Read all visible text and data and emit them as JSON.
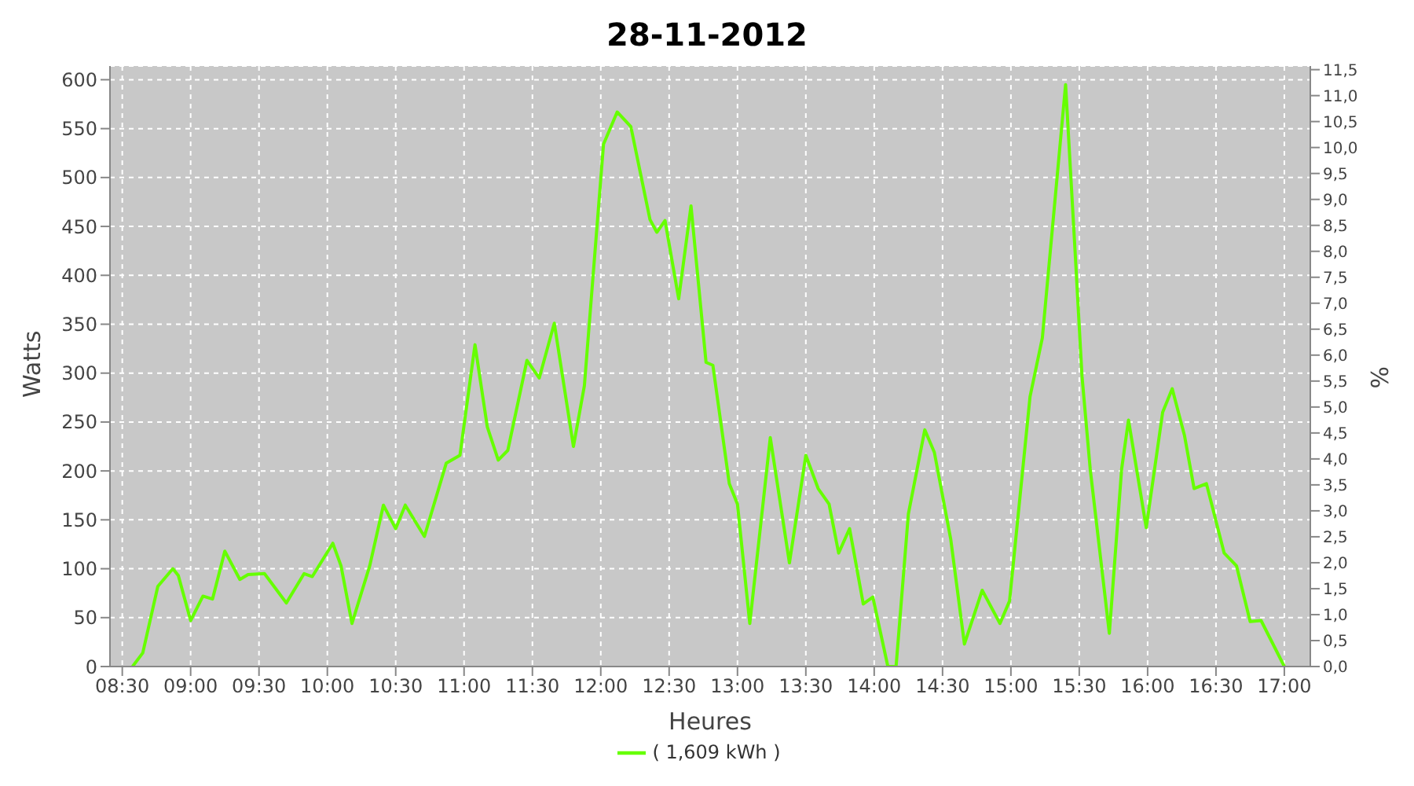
{
  "chart_data": {
    "type": "line",
    "title": "28-11-2012",
    "xlabel": "Heures",
    "ylabel": "Watts",
    "y2label": "%",
    "x": [
      8.575,
      8.65,
      8.76,
      8.87,
      8.91,
      9.0,
      9.09,
      9.16,
      9.25,
      9.36,
      9.42,
      9.54,
      9.7,
      9.83,
      9.89,
      10.04,
      10.1,
      10.18,
      10.31,
      10.41,
      10.5,
      10.57,
      10.71,
      10.87,
      10.97,
      11.08,
      11.17,
      11.25,
      11.32,
      11.46,
      11.55,
      11.66,
      11.8,
      11.88,
      12.02,
      12.12,
      12.22,
      12.36,
      12.41,
      12.47,
      12.57,
      12.66,
      12.77,
      12.82,
      12.94,
      13.0,
      13.09,
      13.24,
      13.38,
      13.5,
      13.59,
      13.67,
      13.74,
      13.82,
      13.92,
      13.99,
      14.1,
      14.16,
      14.25,
      14.37,
      14.44,
      14.56,
      14.66,
      14.79,
      14.92,
      14.99,
      15.14,
      15.23,
      15.4,
      15.47,
      15.52,
      15.58,
      15.72,
      15.81,
      15.86,
      15.99,
      16.11,
      16.18,
      16.27,
      16.34,
      16.43,
      16.56,
      16.65,
      16.75,
      16.83,
      17.0
    ],
    "series": [
      {
        "name": "( 1,609 kWh )",
        "color": "#66ff00",
        "values": [
          0,
          14,
          82,
          100,
          93,
          47,
          72,
          69,
          118,
          89,
          94,
          95,
          65,
          95,
          92,
          126,
          103,
          44,
          103,
          165,
          141,
          165,
          133,
          208,
          216,
          329,
          245,
          211,
          221,
          313,
          295,
          351,
          225,
          287,
          534,
          567,
          552,
          457,
          444,
          456,
          376,
          471,
          311,
          308,
          187,
          166,
          44,
          234,
          106,
          216,
          182,
          166,
          116,
          141,
          64,
          71,
          0,
          0,
          156,
          242,
          219,
          130,
          23,
          78,
          44,
          67,
          276,
          336,
          595,
          423,
          297,
          202,
          34,
          202,
          252,
          142,
          260,
          284,
          236,
          182,
          187,
          116,
          103,
          46,
          47,
          0
        ]
      }
    ],
    "xlim": [
      8.41,
      17.19
    ],
    "xticks": [
      {
        "value": 8.5,
        "label": "08:30"
      },
      {
        "value": 9,
        "label": "09:00"
      },
      {
        "value": 9.5,
        "label": "09:30"
      },
      {
        "value": 10,
        "label": "10:00"
      },
      {
        "value": 10.5,
        "label": "10:30"
      },
      {
        "value": 11,
        "label": "11:00"
      },
      {
        "value": 11.5,
        "label": "11:30"
      },
      {
        "value": 12,
        "label": "12:00"
      },
      {
        "value": 12.5,
        "label": "12:30"
      },
      {
        "value": 13,
        "label": "13:00"
      },
      {
        "value": 13.5,
        "label": "13:30"
      },
      {
        "value": 14,
        "label": "14:00"
      },
      {
        "value": 14.5,
        "label": "14:30"
      },
      {
        "value": 15,
        "label": "15:00"
      },
      {
        "value": 15.5,
        "label": "15:30"
      },
      {
        "value": 16,
        "label": "16:00"
      },
      {
        "value": 16.5,
        "label": "16:30"
      },
      {
        "value": 17,
        "label": "17:00"
      }
    ],
    "ylim": [
      0,
      614
    ],
    "yticks": [
      0,
      50,
      100,
      150,
      200,
      250,
      300,
      350,
      400,
      450,
      500,
      550,
      600
    ],
    "y2lim": [
      0,
      11.57
    ],
    "y2ticks": [
      {
        "value": 0,
        "label": "0,0"
      },
      {
        "value": 0.5,
        "label": "0,5"
      },
      {
        "value": 1,
        "label": "1,0"
      },
      {
        "value": 1.5,
        "label": "1,5"
      },
      {
        "value": 2,
        "label": "2,0"
      },
      {
        "value": 2.5,
        "label": "2,5"
      },
      {
        "value": 3,
        "label": "3,0"
      },
      {
        "value": 3.5,
        "label": "3,5"
      },
      {
        "value": 4,
        "label": "4,0"
      },
      {
        "value": 4.5,
        "label": "4,5"
      },
      {
        "value": 5,
        "label": "5,0"
      },
      {
        "value": 5.5,
        "label": "5,5"
      },
      {
        "value": 6,
        "label": "6,0"
      },
      {
        "value": 6.5,
        "label": "6,5"
      },
      {
        "value": 7,
        "label": "7,0"
      },
      {
        "value": 7.5,
        "label": "7,5"
      },
      {
        "value": 8,
        "label": "8,0"
      },
      {
        "value": 8.5,
        "label": "8,5"
      },
      {
        "value": 9,
        "label": "9,0"
      },
      {
        "value": 9.5,
        "label": "9,5"
      },
      {
        "value": 10,
        "label": "10,0"
      },
      {
        "value": 10.5,
        "label": "10,5"
      },
      {
        "value": 11,
        "label": "11,0"
      },
      {
        "value": 11.5,
        "label": "11,5"
      }
    ],
    "grid": true,
    "legend": "bottom",
    "marker": "none",
    "line_style": "solid"
  }
}
